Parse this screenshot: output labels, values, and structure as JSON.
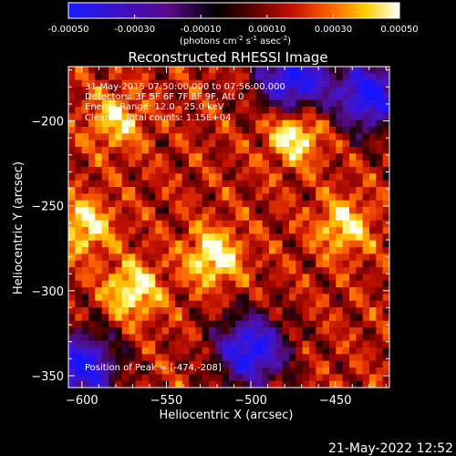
{
  "colorbar": {
    "ticks": [
      "-0.00050",
      "-0.00030",
      "-0.00010",
      "0.00010",
      "0.00030",
      "0.00050"
    ],
    "label_parts": [
      "(photons cm",
      "-2",
      " s",
      "-1",
      " asec",
      "-2",
      ")"
    ]
  },
  "chart_data": {
    "type": "heatmap",
    "title": "Reconstructed RHESSI Image",
    "xlabel": "Heliocentric X (arcsec)",
    "ylabel": "Heliocentric Y (arcsec)",
    "xlim": [
      -608,
      -418
    ],
    "ylim": [
      -357,
      -168
    ],
    "x_ticks": [
      -600,
      -550,
      -500,
      -450
    ],
    "y_ticks": [
      -200,
      -250,
      -300,
      -350
    ],
    "value_range": [
      -0.0005,
      0.0005
    ],
    "annotations": {
      "time": "31-May-2015 07:50:00.000 to 07:56:00.000",
      "detectors": "Detectors: 3F 5F 6F 7F 8F 9F, Att 0",
      "energy": "Energy Range: 12.0 - 25.0 keV",
      "clean": "Clean     Total counts: 1.15E+04",
      "peak": "Position of Peak = [-474,-208]"
    },
    "peak_position": [
      -474,
      -208
    ],
    "bright_sources": [
      {
        "x": -522,
        "y": -280,
        "relative_intensity": 1.0
      },
      {
        "x": -570,
        "y": -300,
        "relative_intensity": 0.95
      },
      {
        "x": -474,
        "y": -208,
        "relative_intensity": 1.0
      },
      {
        "x": -598,
        "y": -262,
        "relative_intensity": 0.85
      },
      {
        "x": -445,
        "y": -262,
        "relative_intensity": 0.8
      },
      {
        "x": -580,
        "y": -200,
        "relative_intensity": 0.7
      }
    ],
    "dark_regions": [
      {
        "x": -500,
        "y": -335
      },
      {
        "x": -430,
        "y": -185
      },
      {
        "x": -475,
        "y": -175
      },
      {
        "x": -600,
        "y": -345
      }
    ]
  },
  "footer": {
    "timestamp": "21-May-2022 12:52"
  }
}
